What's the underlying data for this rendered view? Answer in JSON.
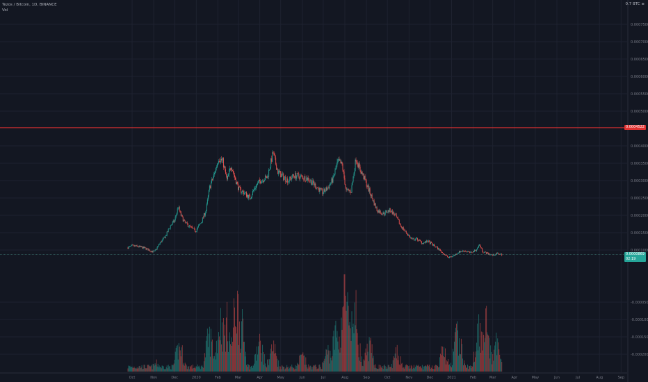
{
  "header": {
    "symbol_line": "Tezos / Bitcoin, 1D, BINANCE",
    "volume_label": "Vol"
  },
  "currency_label": "0.7 BTC ≡",
  "colors": {
    "background": "#131722",
    "grid": "#1e2230",
    "up": "#26a69a",
    "down": "#ef5350",
    "hline": "#e03131",
    "axis_text": "#787b86"
  },
  "chart_data": {
    "type": "candlestick",
    "title": "Tezos / Bitcoin, 1D, BINANCE",
    "price_ticks": [
      "0.0007500",
      "0.0007000",
      "0.0006500",
      "0.0006000",
      "0.0005500",
      "0.0005000",
      "0.0004000",
      "0.0003500",
      "0.0003000",
      "0.0002500",
      "0.0002000",
      "0.0001500",
      "0.0001000",
      "-0.0000500",
      "-0.0001000",
      "-0.0001500",
      "-0.0002000"
    ],
    "time_ticks": [
      "Oct",
      "Nov",
      "Dec",
      "2020",
      "Feb",
      "Mar",
      "Apr",
      "May",
      "Jun",
      "Jul",
      "Aug",
      "Sep",
      "Oct",
      "Nov",
      "Dec",
      "2021",
      "Feb",
      "Mar",
      "Apr",
      "May",
      "Jun",
      "Jul",
      "Aug",
      "Sep"
    ],
    "horizontal_line": {
      "value": 0.0004522,
      "label": "0.0004522"
    },
    "last_price": {
      "value": 8.7e-05,
      "label": "0.0000869",
      "change": "02:19"
    },
    "price_path": [
      [
        "2019-09-25",
        0.000107
      ],
      [
        "2019-10-01",
        0.000112
      ],
      [
        "2019-10-10",
        0.00011
      ],
      [
        "2019-10-20",
        0.000105
      ],
      [
        "2019-10-28",
        9.7e-05
      ],
      [
        "2019-11-02",
        9.5e-05
      ],
      [
        "2019-11-10",
        0.00012
      ],
      [
        "2019-11-18",
        0.00014
      ],
      [
        "2019-11-25",
        0.00017
      ],
      [
        "2019-12-01",
        0.000185
      ],
      [
        "2019-12-06",
        0.000225
      ],
      [
        "2019-12-10",
        0.0002
      ],
      [
        "2019-12-15",
        0.00018
      ],
      [
        "2019-12-22",
        0.000168
      ],
      [
        "2019-12-31",
        0.000155
      ],
      [
        "2020-01-08",
        0.00018
      ],
      [
        "2020-01-15",
        0.000215
      ],
      [
        "2020-01-20",
        0.00028
      ],
      [
        "2020-01-27",
        0.00032
      ],
      [
        "2020-02-02",
        0.000365
      ],
      [
        "2020-02-08",
        0.000355
      ],
      [
        "2020-02-14",
        0.0003
      ],
      [
        "2020-02-20",
        0.000345
      ],
      [
        "2020-02-25",
        0.00031
      ],
      [
        "2020-03-02",
        0.000275
      ],
      [
        "2020-03-10",
        0.000265
      ],
      [
        "2020-03-18",
        0.00025
      ],
      [
        "2020-03-25",
        0.00028
      ],
      [
        "2020-04-02",
        0.0003
      ],
      [
        "2020-04-12",
        0.00031
      ],
      [
        "2020-04-20",
        0.00038
      ],
      [
        "2020-04-27",
        0.000325
      ],
      [
        "2020-05-05",
        0.00031
      ],
      [
        "2020-05-12",
        0.0003
      ],
      [
        "2020-05-20",
        0.000315
      ],
      [
        "2020-06-01",
        0.00031
      ],
      [
        "2020-06-10",
        0.000305
      ],
      [
        "2020-06-20",
        0.000285
      ],
      [
        "2020-06-30",
        0.000265
      ],
      [
        "2020-07-08",
        0.00028
      ],
      [
        "2020-07-15",
        0.000305
      ],
      [
        "2020-07-22",
        0.000355
      ],
      [
        "2020-07-28",
        0.000345
      ],
      [
        "2020-08-03",
        0.00027
      ],
      [
        "2020-08-10",
        0.00027
      ],
      [
        "2020-08-17",
        0.000365
      ],
      [
        "2020-08-22",
        0.000335
      ],
      [
        "2020-08-28",
        0.00031
      ],
      [
        "2020-09-04",
        0.000275
      ],
      [
        "2020-09-10",
        0.000245
      ],
      [
        "2020-09-16",
        0.000215
      ],
      [
        "2020-09-25",
        0.000205
      ],
      [
        "2020-10-05",
        0.000215
      ],
      [
        "2020-10-12",
        0.0002
      ],
      [
        "2020-10-20",
        0.00017
      ],
      [
        "2020-10-28",
        0.00015
      ],
      [
        "2020-11-05",
        0.00013
      ],
      [
        "2020-11-12",
        0.000132
      ],
      [
        "2020-11-20",
        0.00012
      ],
      [
        "2020-11-28",
        0.000125
      ],
      [
        "2020-12-05",
        0.000115
      ],
      [
        "2020-12-12",
        0.000105
      ],
      [
        "2020-12-20",
        9e-05
      ],
      [
        "2020-12-28",
        7.8e-05
      ],
      [
        "2021-01-05",
        8.5e-05
      ],
      [
        "2021-01-12",
        9.5e-05
      ],
      [
        "2021-01-20",
        9.8e-05
      ],
      [
        "2021-01-28",
        9.2e-05
      ],
      [
        "2021-02-05",
        0.0001
      ],
      [
        "2021-02-10",
        0.000115
      ],
      [
        "2021-02-15",
        9.5e-05
      ],
      [
        "2021-02-22",
        9e-05
      ],
      [
        "2021-03-01",
        8.5e-05
      ],
      [
        "2021-03-08",
        9e-05
      ],
      [
        "2021-03-14",
        8.7e-05
      ]
    ],
    "volume_peaks": [
      [
        "2019-11-05",
        0.1
      ],
      [
        "2019-12-08",
        0.3
      ],
      [
        "2020-01-20",
        0.42
      ],
      [
        "2020-02-05",
        0.62
      ],
      [
        "2020-02-14",
        0.58
      ],
      [
        "2020-02-28",
        0.82
      ],
      [
        "2020-03-05",
        0.55
      ],
      [
        "2020-04-01",
        0.33
      ],
      [
        "2020-04-20",
        0.3
      ],
      [
        "2020-06-01",
        0.18
      ],
      [
        "2020-07-08",
        0.25
      ],
      [
        "2020-07-20",
        0.48
      ],
      [
        "2020-08-01",
        0.95
      ],
      [
        "2020-08-15",
        0.72
      ],
      [
        "2020-09-05",
        0.3
      ],
      [
        "2020-10-15",
        0.22
      ],
      [
        "2020-12-20",
        0.25
      ],
      [
        "2021-01-10",
        0.45
      ],
      [
        "2021-02-10",
        0.55
      ],
      [
        "2021-02-18",
        0.65
      ],
      [
        "2021-03-08",
        0.35
      ]
    ]
  }
}
